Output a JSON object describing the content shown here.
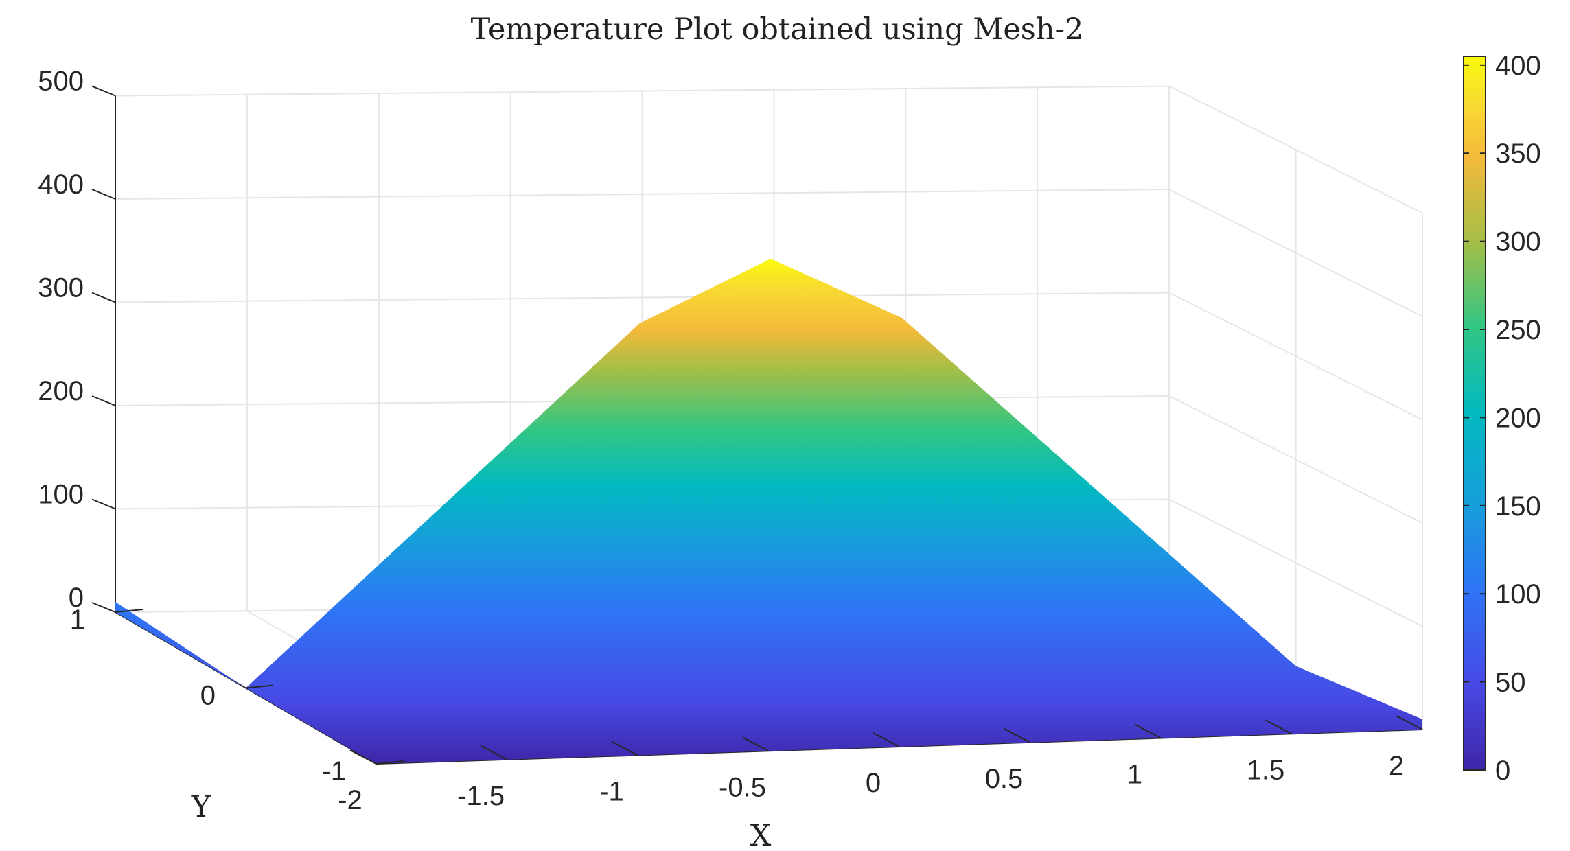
{
  "chart_data": {
    "type": "surface",
    "title": "Temperature Plot obtained using Mesh-2",
    "xlabel": "X",
    "ylabel": "Y",
    "zlabel": "",
    "xlim": [
      -2,
      2
    ],
    "ylim": [
      -1,
      1
    ],
    "zlim": [
      0,
      500
    ],
    "x_ticks": [
      "-2",
      "-1.5",
      "-1",
      "-0.5",
      "0",
      "0.5",
      "1",
      "1.5",
      "2"
    ],
    "y_ticks": [
      "-1",
      "0",
      "1"
    ],
    "z_ticks": [
      "0",
      "100",
      "200",
      "300",
      "400",
      "500"
    ],
    "colorbar": {
      "range": [
        0,
        405
      ],
      "ticks": [
        "0",
        "50",
        "100",
        "150",
        "200",
        "250",
        "300",
        "350",
        "400"
      ],
      "colormap": "parula"
    },
    "surface": {
      "description_function": "T(x) peaks at x=0",
      "peak_value": 405,
      "edge_value": 0,
      "samples": [
        {
          "x": -2.0,
          "T": 0
        },
        {
          "x": -1.5,
          "T": 115
        },
        {
          "x": -1.0,
          "T": 230
        },
        {
          "x": -0.5,
          "T": 345
        },
        {
          "x": 0.0,
          "T": 405
        },
        {
          "x": 0.5,
          "T": 345
        },
        {
          "x": 1.0,
          "T": 230
        },
        {
          "x": 1.5,
          "T": 115
        },
        {
          "x": 2.0,
          "T": 0
        }
      ]
    },
    "grid": true,
    "colors": {
      "parula_stops": [
        "#3e26a8",
        "#4749e4",
        "#2f74f6",
        "#15a0d9",
        "#02b9c0",
        "#31c684",
        "#a4be47",
        "#f5ba3b",
        "#f8d932",
        "#f9fb0e"
      ]
    }
  }
}
